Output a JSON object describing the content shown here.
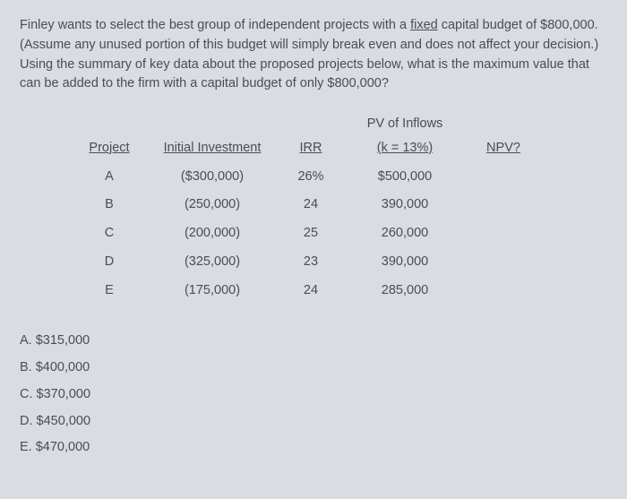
{
  "question": {
    "p1a": "Finley wants to select the best group of independent projects with a ",
    "fixed": "fixed",
    "p1b": " capital budget of $800,000. (Assume any unused portion of this budget will simply break even and does not affect your decision.) Using the summary of key data about the proposed projects below, what is the maximum value that can be added to the firm with a capital budget of only $800,000?"
  },
  "table": {
    "pv_header_top": "PV of Inflows",
    "headers": {
      "project": "Project",
      "initial": "Initial Investment",
      "irr": "IRR",
      "pv": "(k = 13%)",
      "npv": "NPV?"
    },
    "rows": [
      {
        "project": "A",
        "initial": "($300,000)",
        "irr": "26%",
        "pv": "$500,000"
      },
      {
        "project": "B",
        "initial": "(250,000)",
        "irr": "24",
        "pv": "390,000"
      },
      {
        "project": "C",
        "initial": "(200,000)",
        "irr": "25",
        "pv": "260,000"
      },
      {
        "project": "D",
        "initial": "(325,000)",
        "irr": "23",
        "pv": "390,000"
      },
      {
        "project": "E",
        "initial": "(175,000)",
        "irr": "24",
        "pv": "285,000"
      }
    ]
  },
  "choices": [
    "A. $315,000",
    "B. $400,000",
    "C. $370,000",
    "D. $450,000",
    "E. $470,000"
  ],
  "colors": {
    "background": "#d9dce0",
    "text": "#4a4d52"
  }
}
